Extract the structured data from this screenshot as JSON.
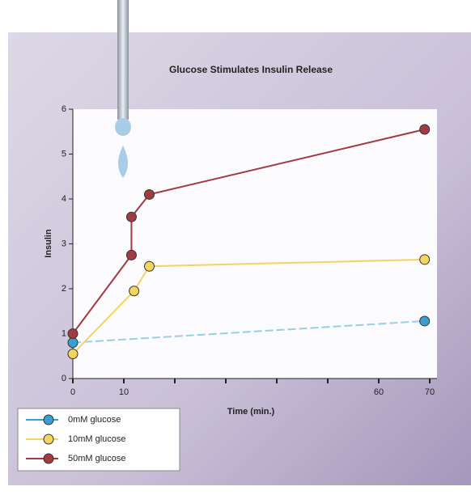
{
  "chart_data": {
    "type": "line",
    "title": "Glucose Stimulates Insulin Release",
    "x_label": "Time (min.)",
    "y_label": "Insulin",
    "xlim": [
      0,
      70
    ],
    "ylim": [
      0,
      6
    ],
    "xticks": [
      0,
      10,
      {
        "value": 20,
        "label": null
      },
      {
        "value": 30,
        "label": null
      },
      {
        "value": 40,
        "label": null
      },
      {
        "value": 50,
        "label": null
      },
      60,
      70
    ],
    "yticks": [
      0,
      1,
      2,
      3,
      4,
      5,
      6
    ],
    "legend": "lower-left",
    "series": [
      {
        "name": "0mM glucose",
        "color": "#3a9fd0",
        "x": [
          0,
          69
        ],
        "values": [
          0.8,
          1.28
        ]
      },
      {
        "name": "10mM glucose",
        "color": "#f2d45e",
        "x": [
          0,
          12,
          15,
          69
        ],
        "values": [
          0.55,
          1.95,
          2.5,
          2.65
        ]
      },
      {
        "name": "50mM glucose",
        "color": "#a23a42",
        "x": [
          0,
          11.5,
          11.5,
          15,
          69
        ],
        "values": [
          1.0,
          2.75,
          3.6,
          4.1,
          5.55
        ]
      }
    ]
  }
}
